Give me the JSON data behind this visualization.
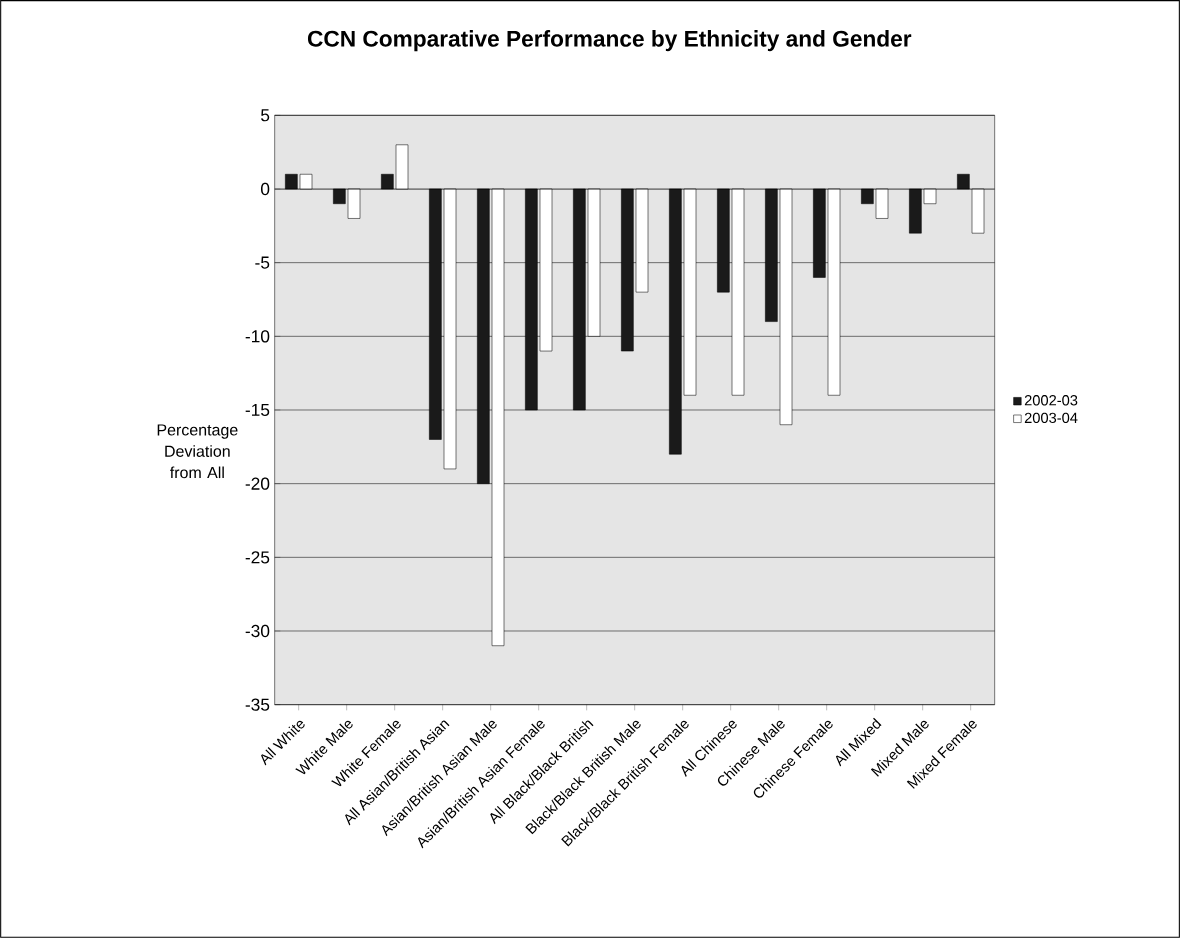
{
  "chart_data": {
    "type": "bar",
    "title": "CCN Comparative Performance by Ethnicity and Gender",
    "ylabel": "Percentage Deviation from All",
    "categories": [
      "All White",
      "White Male",
      "White Female",
      "All Asian/British Asian",
      "Asian/British Asian Male",
      "Asian/British Asian Female",
      "All Black/Black British",
      "Black/Black British Male",
      "Black/Black British Female",
      "All Chinese",
      "Chinese Male",
      "Chinese Female",
      "All Mixed",
      "Mixed Male",
      "Mixed Female"
    ],
    "series": [
      {
        "name": "2002-03",
        "color": "#1a1a1a",
        "values": [
          1,
          -1,
          1,
          -17,
          -20,
          -15,
          -15,
          -11,
          -18,
          -7,
          -9,
          -6,
          -1,
          -3,
          1
        ]
      },
      {
        "name": "2003-04",
        "color": "#ffffff",
        "values": [
          1,
          -2,
          3,
          -19,
          -31,
          -11,
          -10,
          -7,
          -14,
          -14,
          -16,
          -14,
          -2,
          -1,
          -3
        ]
      }
    ],
    "ylim": [
      -35,
      5
    ],
    "yticks": [
      -35,
      -30,
      -25,
      -20,
      -15,
      -10,
      -5,
      0,
      5
    ],
    "grid": "y",
    "legend": "right"
  }
}
